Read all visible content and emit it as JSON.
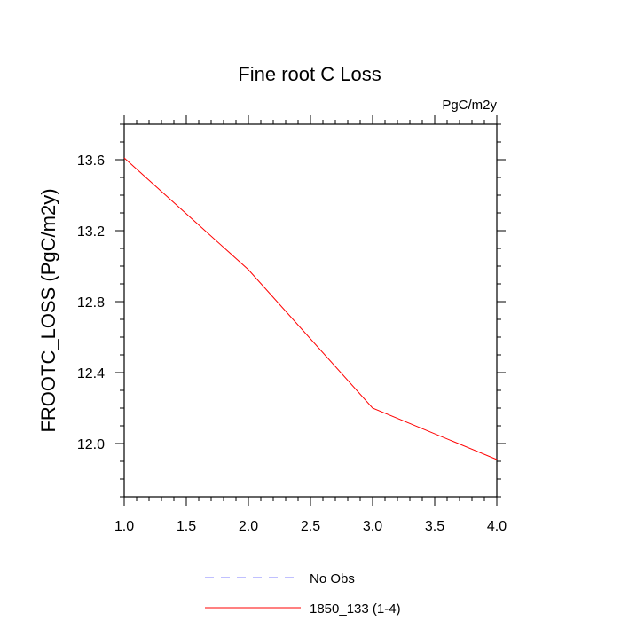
{
  "chart_data": {
    "type": "line",
    "title": "Fine root C Loss",
    "units": "PgC/m2y",
    "xlabel": "",
    "ylabel": "FROOTC_LOSS  (PgC/m2y)",
    "xlim": [
      1.0,
      4.0
    ],
    "ylim": [
      11.7,
      13.8
    ],
    "x_ticks": [
      1.0,
      1.5,
      2.0,
      2.5,
      3.0,
      3.5,
      4.0
    ],
    "x_tick_labels": [
      "1.0",
      "1.5",
      "2.0",
      "2.5",
      "3.0",
      "3.5",
      "4.0"
    ],
    "y_ticks": [
      12.0,
      12.4,
      12.8,
      13.2,
      13.6
    ],
    "y_tick_labels": [
      "12.0",
      "12.4",
      "12.8",
      "13.2",
      "13.6"
    ],
    "grid": false,
    "legend_position": "bottom",
    "series": [
      {
        "name": "No Obs",
        "color": "#8080ff",
        "dash": "dashed",
        "x": [],
        "y": []
      },
      {
        "name": "1850_133 (1-4)",
        "color": "#ff0000",
        "dash": "solid",
        "x": [
          1.0,
          2.0,
          3.0,
          4.0
        ],
        "y": [
          13.61,
          12.98,
          12.2,
          11.91
        ]
      }
    ]
  }
}
